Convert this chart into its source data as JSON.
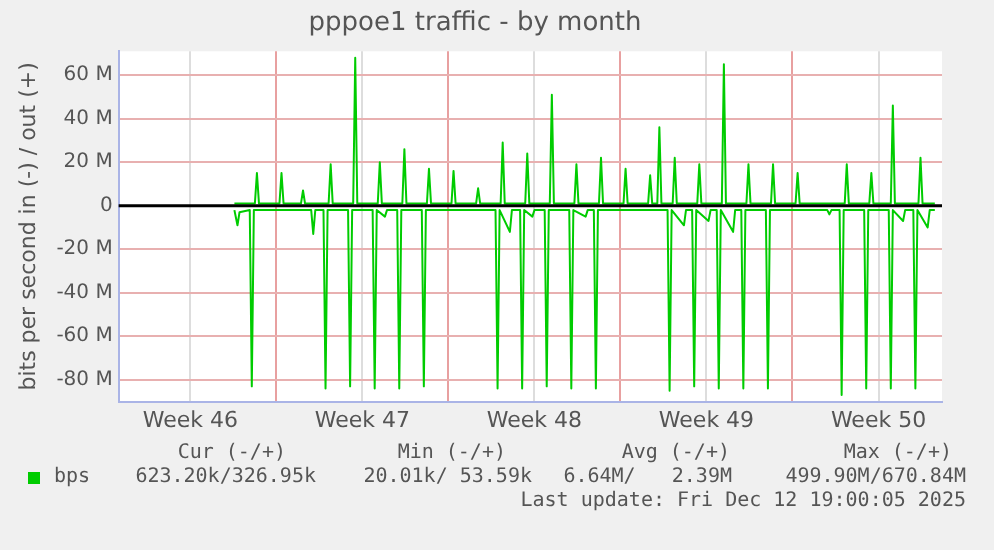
{
  "chart_data": {
    "type": "line",
    "title": "pppoe1 traffic - by month",
    "ylabel": "bits per second in (-) / out (+)",
    "xlim": [
      "2025-11-09T14:00",
      "2025-12-13T02:00"
    ],
    "xticks": [
      {
        "value": "2025-11-12T12:00",
        "label": "Week 46"
      },
      {
        "value": "2025-11-16T00:00",
        "label": null
      },
      {
        "value": "2025-11-19T12:00",
        "label": "Week 47"
      },
      {
        "value": "2025-11-23T00:00",
        "label": null
      },
      {
        "value": "2025-11-26T12:00",
        "label": "Week 48"
      },
      {
        "value": "2025-11-30T00:00",
        "label": null
      },
      {
        "value": "2025-12-03T12:00",
        "label": "Week 49"
      },
      {
        "value": "2025-12-07T00:00",
        "label": null
      },
      {
        "value": "2025-12-10T12:00",
        "label": "Week 50"
      }
    ],
    "ylim": [
      -90,
      71
    ],
    "yticks": [
      {
        "value": -80,
        "label": "-80 M"
      },
      {
        "value": -60,
        "label": "-60 M"
      },
      {
        "value": -40,
        "label": "-40 M"
      },
      {
        "value": -20,
        "label": "-20 M"
      },
      0,
      {
        "value": 20,
        "label": "20 M"
      },
      {
        "value": 40,
        "label": "40 M"
      },
      {
        "value": 60,
        "label": "60 M"
      }
    ],
    "grid": true,
    "legend": "bottom",
    "marker": "none",
    "line_style": "solid",
    "ref_lines": [
      {
        "axis": "y",
        "value": 0,
        "color": "#000000"
      }
    ],
    "series": [
      {
        "name": "bps",
        "color": "#00cc00",
        "x": [
          "2025-11-14T07:00",
          "2025-11-15T03:00",
          "2025-11-15T05:00",
          "2025-11-15T07:00",
          "2025-11-16T03:00",
          "2025-11-16T05:00",
          "2025-11-16T07:00",
          "2025-11-17T00:00",
          "2025-11-17T02:00",
          "2025-11-17T04:00",
          "2025-11-18T03:00",
          "2025-11-18T05:00",
          "2025-11-18T07:00",
          "2025-11-19T03:00",
          "2025-11-19T05:00",
          "2025-11-19T07:00",
          "2025-11-20T03:00",
          "2025-11-20T05:00",
          "2025-11-20T07:00",
          "2025-11-21T03:00",
          "2025-11-21T05:00",
          "2025-11-21T07:00",
          "2025-11-22T03:00",
          "2025-11-22T05:00",
          "2025-11-22T07:00",
          "2025-11-23T03:00",
          "2025-11-23T05:00",
          "2025-11-23T07:00",
          "2025-11-24T03:00",
          "2025-11-24T05:00",
          "2025-11-24T07:00",
          "2025-11-25T03:00",
          "2025-11-25T05:00",
          "2025-11-25T07:00",
          "2025-11-26T03:00",
          "2025-11-26T05:00",
          "2025-11-26T07:00",
          "2025-11-27T03:00",
          "2025-11-27T05:00",
          "2025-11-27T07:00",
          "2025-11-28T03:00",
          "2025-11-28T05:00",
          "2025-11-28T07:00",
          "2025-11-29T03:00",
          "2025-11-29T05:00",
          "2025-11-29T07:00",
          "2025-11-30T03:00",
          "2025-11-30T05:00",
          "2025-11-30T07:00",
          "2025-12-01T03:00",
          "2025-12-01T05:00",
          "2025-12-01T07:00",
          "2025-12-01T12:00",
          "2025-12-01T14:00",
          "2025-12-01T16:00",
          "2025-12-02T03:00",
          "2025-12-02T05:00",
          "2025-12-02T07:00",
          "2025-12-03T03:00",
          "2025-12-03T05:00",
          "2025-12-03T07:00",
          "2025-12-04T03:00",
          "2025-12-04T05:00",
          "2025-12-04T07:00",
          "2025-12-05T03:00",
          "2025-12-05T05:00",
          "2025-12-05T07:00",
          "2025-12-06T03:00",
          "2025-12-06T05:00",
          "2025-12-06T07:00",
          "2025-12-07T03:00",
          "2025-12-07T05:00",
          "2025-12-07T07:00",
          "2025-12-09T03:00",
          "2025-12-09T05:00",
          "2025-12-09T07:00",
          "2025-12-10T03:00",
          "2025-12-10T05:00",
          "2025-12-10T07:00",
          "2025-12-11T00:00",
          "2025-12-11T02:00",
          "2025-12-11T04:00",
          "2025-12-12T03:00",
          "2025-12-12T05:00",
          "2025-12-12T07:00",
          "2025-12-12T19:00"
        ],
        "values": [
          1,
          1,
          15,
          1,
          1,
          15,
          1,
          1,
          7,
          1,
          1,
          19,
          1,
          1,
          68,
          1,
          1,
          20,
          1,
          1,
          26,
          1,
          1,
          17,
          1,
          1,
          16,
          1,
          1,
          8,
          1,
          1,
          29,
          1,
          1,
          24,
          1,
          1,
          51,
          1,
          1,
          19,
          1,
          1,
          22,
          1,
          1,
          17,
          1,
          1,
          14,
          1,
          1,
          36,
          1,
          1,
          22,
          1,
          1,
          19,
          1,
          1,
          65,
          1,
          1,
          19,
          1,
          1,
          19,
          1,
          1,
          15,
          1,
          1,
          19,
          1,
          1,
          15,
          1,
          1,
          46,
          1,
          1,
          22,
          1,
          1
        ]
      },
      {
        "color": "#00cc00",
        "x": [
          "2025-11-14T07:00",
          "2025-11-14T10:00",
          "2025-11-14T12:00",
          "2025-11-14T22:00",
          "2025-11-15T00:00",
          "2025-11-15T02:00",
          "2025-11-17T10:00",
          "2025-11-17T12:00",
          "2025-11-17T14:00",
          "2025-11-17T22:00",
          "2025-11-18T00:00",
          "2025-11-18T02:00",
          "2025-11-18T22:00",
          "2025-11-19T00:00",
          "2025-11-19T02:00",
          "2025-11-19T22:00",
          "2025-11-20T00:00",
          "2025-11-20T02:00",
          "2025-11-20T10:00",
          "2025-11-20T12:00",
          "2025-11-20T22:00",
          "2025-11-21T00:00",
          "2025-11-21T02:00",
          "2025-11-21T22:00",
          "2025-11-22T00:00",
          "2025-11-22T02:00",
          "2025-11-24T22:00",
          "2025-11-25T00:00",
          "2025-11-25T02:00",
          "2025-11-25T12:00",
          "2025-11-25T14:00",
          "2025-11-25T22:00",
          "2025-11-26T00:00",
          "2025-11-26T02:00",
          "2025-11-26T10:00",
          "2025-11-26T12:00",
          "2025-11-26T22:00",
          "2025-11-27T00:00",
          "2025-11-27T02:00",
          "2025-11-27T22:00",
          "2025-11-28T00:00",
          "2025-11-28T02:00",
          "2025-11-28T14:00",
          "2025-11-28T16:00",
          "2025-11-28T22:00",
          "2025-11-29T00:00",
          "2025-11-29T02:00",
          "2025-12-01T22:00",
          "2025-12-02T00:00",
          "2025-12-02T02:00",
          "2025-12-02T14:00",
          "2025-12-02T16:00",
          "2025-12-02T22:00",
          "2025-12-03T00:00",
          "2025-12-03T02:00",
          "2025-12-03T14:00",
          "2025-12-03T16:00",
          "2025-12-03T22:00",
          "2025-12-04T00:00",
          "2025-12-04T02:00",
          "2025-12-04T14:00",
          "2025-12-04T16:00",
          "2025-12-04T22:00",
          "2025-12-05T00:00",
          "2025-12-05T02:00",
          "2025-12-05T22:00",
          "2025-12-06T00:00",
          "2025-12-06T02:00",
          "2025-12-08T10:00",
          "2025-12-08T12:00",
          "2025-12-08T14:00",
          "2025-12-08T22:00",
          "2025-12-09T00:00",
          "2025-12-09T02:00",
          "2025-12-09T22:00",
          "2025-12-10T00:00",
          "2025-12-10T02:00",
          "2025-12-10T22:00",
          "2025-12-11T00:00",
          "2025-12-11T02:00",
          "2025-12-11T12:00",
          "2025-12-11T14:00",
          "2025-12-11T22:00",
          "2025-12-12T00:00",
          "2025-12-12T02:00",
          "2025-12-12T12:00",
          "2025-12-12T14:00",
          "2025-12-12T19:00"
        ],
        "values": [
          -2,
          -9,
          -3,
          -2,
          -83,
          -2,
          -2,
          -13,
          -2,
          -2,
          -84,
          -2,
          -2,
          -83,
          -2,
          -2,
          -84,
          -2,
          -5,
          -2,
          -2,
          -84,
          -2,
          -2,
          -83,
          -2,
          -2,
          -84,
          -2,
          -12,
          -2,
          -2,
          -84,
          -2,
          -5,
          -2,
          -2,
          -83,
          -2,
          -2,
          -84,
          -2,
          -5,
          -2,
          -2,
          -84,
          -2,
          -2,
          -85,
          -2,
          -9,
          -2,
          -2,
          -83,
          -2,
          -7,
          -2,
          -2,
          -84,
          -2,
          -12,
          -2,
          -2,
          -84,
          -2,
          -2,
          -84,
          -2,
          -2,
          -4,
          -2,
          -2,
          -87,
          -2,
          -2,
          -84,
          -2,
          -2,
          -84,
          -2,
          -7,
          -2,
          -2,
          -84,
          -2,
          -10,
          -2,
          -2
        ]
      }
    ],
    "annotations": [
      "Cur (-/+)",
      "Min (-/+)",
      "Avg (-/+)",
      "Max (-/+)",
      "623.20k/326.95k",
      "20.01k/ 53.59k",
      "6.64M/   2.39M",
      "499.90M/670.84M",
      "Last update: Fri Dec 12 19:00:05 2025"
    ]
  }
}
